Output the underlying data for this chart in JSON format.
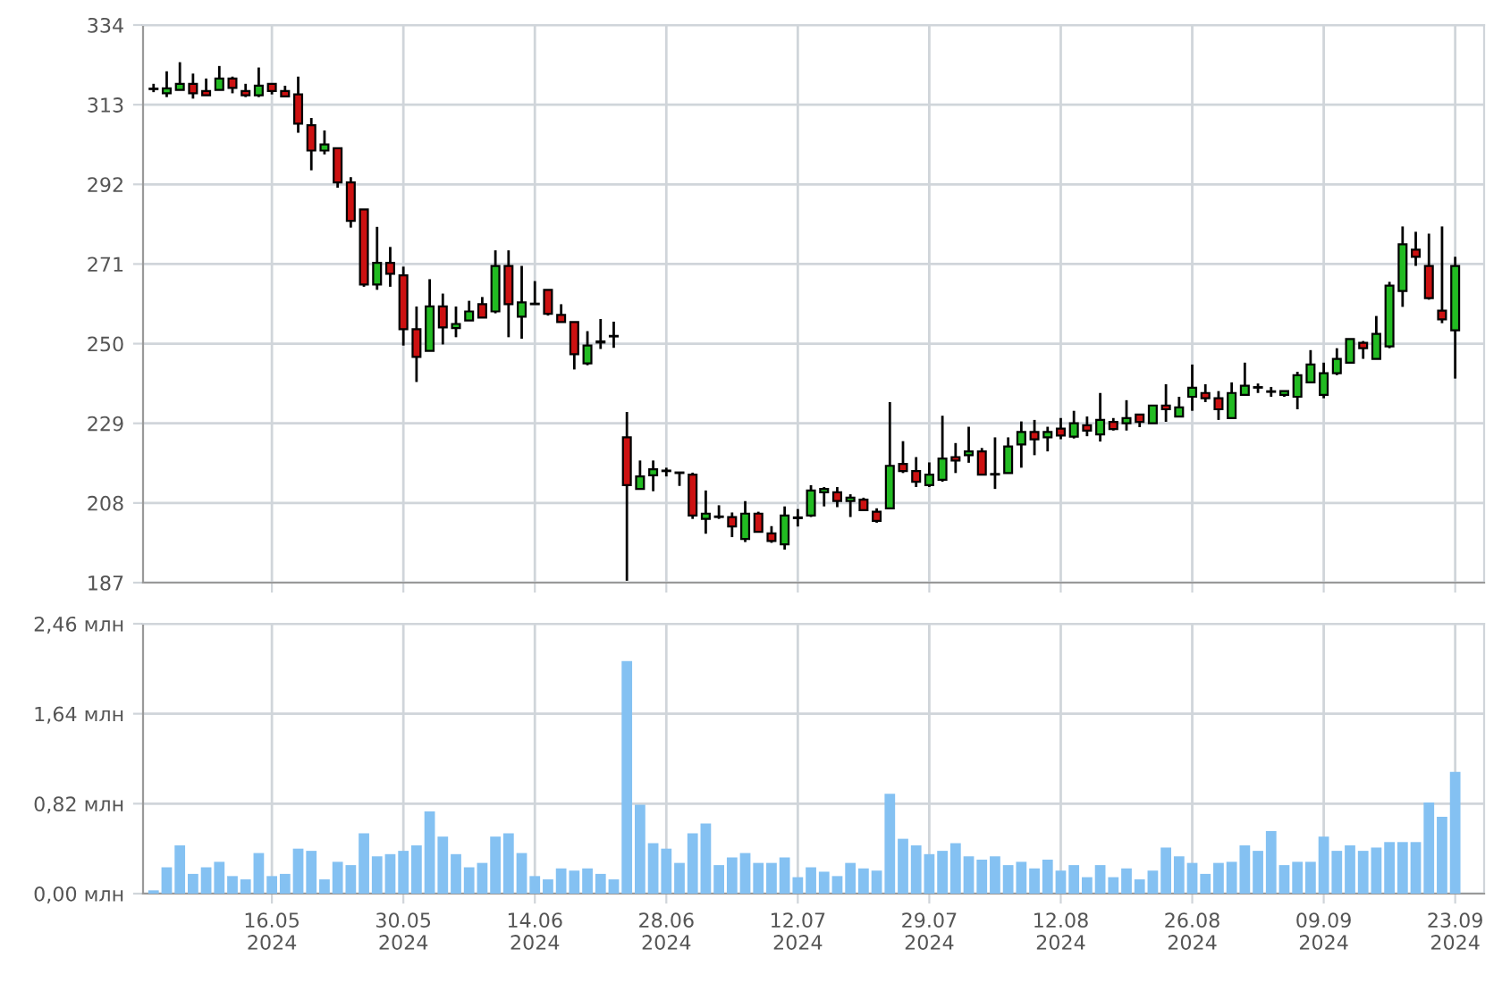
{
  "chart_data": [
    {
      "type": "candlestick",
      "categories": [
        null,
        null,
        null,
        null,
        null,
        null,
        null,
        null,
        null,
        null,
        null,
        null,
        null,
        null,
        null,
        null,
        null,
        null,
        null,
        null,
        null,
        null,
        null,
        null,
        null,
        null,
        null,
        null,
        null,
        null,
        null,
        null,
        null,
        null,
        null,
        null,
        null,
        null,
        null,
        null,
        null,
        null,
        null,
        null,
        null,
        null,
        null,
        null,
        null,
        null,
        null,
        null,
        null,
        null,
        null,
        null,
        null,
        null,
        null,
        null,
        null,
        null,
        null,
        null,
        null,
        null,
        null,
        null,
        null,
        null,
        null,
        null,
        null,
        null,
        null,
        null,
        null,
        null,
        null,
        null,
        null,
        null,
        null,
        null,
        null,
        null,
        null,
        null,
        null,
        null,
        null,
        null,
        null,
        null,
        null,
        null,
        null,
        null,
        null,
        null
      ],
      "ohlc": [
        [
          317.1,
          318.5,
          316.3,
          317.1
        ],
        [
          316.0,
          321.8,
          315.0,
          317.3
        ],
        [
          316.9,
          324.2,
          316.9,
          318.5
        ],
        [
          318.5,
          321.2,
          314.6,
          316.0
        ],
        [
          316.6,
          319.9,
          315.5,
          315.5
        ],
        [
          316.9,
          323.2,
          316.9,
          319.9
        ],
        [
          319.9,
          320.4,
          316.0,
          317.4
        ],
        [
          316.6,
          318.5,
          315.0,
          315.5
        ],
        [
          315.5,
          322.8,
          315.0,
          318.0
        ],
        [
          318.5,
          318.5,
          315.7,
          316.6
        ],
        [
          316.6,
          318.0,
          315.2,
          315.2
        ],
        [
          315.7,
          320.4,
          305.6,
          308.0
        ],
        [
          307.6,
          309.5,
          295.7,
          300.9
        ],
        [
          300.9,
          306.2,
          299.9,
          302.5
        ],
        [
          301.5,
          301.5,
          291.1,
          292.5
        ],
        [
          292.5,
          293.9,
          280.6,
          282.4
        ],
        [
          285.4,
          285.4,
          265.0,
          265.6
        ],
        [
          265.6,
          280.8,
          264.2,
          271.3
        ],
        [
          271.3,
          275.5,
          265.0,
          268.4
        ],
        [
          268.0,
          270.3,
          249.5,
          253.8
        ],
        [
          253.8,
          259.8,
          239.9,
          246.5
        ],
        [
          248.1,
          267.0,
          248.1,
          259.8
        ],
        [
          259.8,
          263.2,
          249.8,
          254.3
        ],
        [
          254.1,
          259.8,
          251.7,
          255.2
        ],
        [
          256.1,
          261.3,
          256.1,
          258.5
        ],
        [
          260.4,
          262.3,
          256.9,
          256.9
        ],
        [
          258.5,
          274.6,
          258.0,
          270.5
        ],
        [
          270.5,
          274.6,
          251.7,
          260.4
        ],
        [
          257.1,
          270.5,
          251.3,
          260.9
        ],
        [
          260.4,
          266.5,
          260.4,
          260.4
        ],
        [
          264.2,
          264.2,
          257.4,
          257.9
        ],
        [
          257.6,
          260.4,
          255.7,
          255.7
        ],
        [
          255.7,
          255.7,
          243.2,
          247.2
        ],
        [
          244.8,
          253.3,
          244.3,
          249.5
        ],
        [
          250.3,
          256.5,
          248.6,
          250.6
        ],
        [
          251.9,
          255.8,
          248.9,
          251.9
        ],
        [
          225.3,
          232.0,
          187.5,
          212.7
        ],
        [
          211.7,
          219.2,
          211.7,
          215.0
        ],
        [
          215.3,
          219.2,
          211.1,
          216.9
        ],
        [
          216.4,
          217.3,
          215.0,
          216.4
        ],
        [
          216.0,
          216.1,
          212.5,
          215.9
        ],
        [
          215.5,
          216.0,
          203.8,
          204.7
        ],
        [
          203.8,
          211.3,
          199.9,
          205.2
        ],
        [
          204.3,
          207.4,
          203.8,
          204.3
        ],
        [
          204.3,
          205.5,
          199.0,
          201.8
        ],
        [
          198.5,
          208.5,
          197.7,
          205.2
        ],
        [
          205.2,
          205.7,
          200.4,
          200.4
        ],
        [
          200.0,
          201.9,
          197.5,
          198.0
        ],
        [
          197.1,
          207.1,
          195.7,
          204.7
        ],
        [
          204.0,
          206.4,
          201.8,
          204.2
        ],
        [
          204.7,
          212.7,
          204.3,
          211.3
        ],
        [
          210.8,
          212.2,
          207.1,
          211.7
        ],
        [
          210.8,
          212.2,
          206.9,
          208.5
        ],
        [
          208.5,
          210.3,
          204.3,
          209.4
        ],
        [
          208.9,
          209.4,
          206.1,
          206.1
        ],
        [
          205.7,
          206.6,
          202.8,
          203.3
        ],
        [
          206.6,
          234.6,
          206.6,
          217.8
        ],
        [
          218.3,
          224.3,
          215.9,
          216.4
        ],
        [
          216.4,
          220.1,
          212.2,
          213.6
        ],
        [
          212.7,
          218.7,
          212.2,
          215.5
        ],
        [
          214.1,
          231.0,
          213.6,
          219.7
        ],
        [
          220.1,
          223.8,
          215.9,
          219.2
        ],
        [
          220.6,
          228.1,
          218.6,
          221.6
        ],
        [
          221.6,
          222.5,
          215.5,
          215.5
        ],
        [
          215.5,
          225.3,
          211.7,
          215.5
        ],
        [
          215.9,
          225.3,
          215.9,
          222.9
        ],
        [
          223.4,
          229.5,
          217.3,
          226.7
        ],
        [
          226.7,
          229.9,
          220.6,
          224.8
        ],
        [
          225.3,
          228.1,
          221.6,
          226.7
        ],
        [
          227.6,
          230.4,
          224.8,
          225.8
        ],
        [
          225.5,
          232.3,
          225.0,
          229.0
        ],
        [
          228.5,
          230.8,
          225.6,
          227.1
        ],
        [
          226.1,
          237.0,
          224.2,
          229.9
        ],
        [
          229.4,
          230.4,
          227.1,
          227.5
        ],
        [
          229.0,
          235.1,
          227.1,
          230.4
        ],
        [
          231.3,
          231.3,
          228.0,
          229.4
        ],
        [
          229.0,
          233.7,
          229.0,
          233.7
        ],
        [
          233.7,
          239.3,
          229.4,
          232.7
        ],
        [
          230.8,
          236.0,
          230.8,
          233.2
        ],
        [
          236.0,
          244.5,
          232.3,
          238.4
        ],
        [
          237.0,
          239.3,
          234.6,
          235.6
        ],
        [
          235.6,
          237.5,
          229.9,
          232.7
        ],
        [
          230.4,
          239.8,
          230.4,
          237.0
        ],
        [
          236.5,
          245.0,
          236.5,
          238.9
        ],
        [
          238.4,
          239.5,
          237.0,
          238.4
        ],
        [
          237.3,
          238.6,
          236.0,
          237.3
        ],
        [
          236.5,
          237.5,
          236.0,
          237.5
        ],
        [
          236.0,
          242.6,
          232.7,
          241.7
        ],
        [
          239.8,
          248.3,
          239.8,
          244.5
        ],
        [
          236.5,
          245.0,
          235.6,
          242.2
        ],
        [
          242.2,
          248.8,
          241.7,
          246.0
        ],
        [
          245.0,
          251.2,
          245.0,
          251.2
        ],
        [
          250.2,
          250.7,
          246.0,
          248.8
        ],
        [
          246.0,
          257.3,
          246.0,
          252.6
        ],
        [
          249.3,
          266.3,
          248.8,
          265.3
        ],
        [
          263.9,
          280.9,
          259.7,
          276.2
        ],
        [
          274.8,
          279.5,
          270.5,
          272.9
        ],
        [
          270.5,
          279.0,
          261.6,
          262.0
        ],
        [
          258.7,
          280.9,
          255.4,
          256.4
        ],
        [
          253.5,
          272.9,
          240.8,
          270.5
        ]
      ],
      "ylim": [
        187,
        334
      ],
      "yticks": [
        187,
        208,
        229,
        250,
        271,
        292,
        313,
        334
      ],
      "grid": true,
      "tick_labels": "y"
    },
    {
      "type": "bar",
      "categories": [
        null,
        null,
        null,
        null,
        null,
        null,
        null,
        null,
        null,
        "16.05\n2024",
        null,
        null,
        null,
        null,
        null,
        null,
        null,
        null,
        null,
        "30.05\n2024",
        null,
        null,
        null,
        null,
        null,
        null,
        null,
        null,
        null,
        "14.06\n2024",
        null,
        null,
        null,
        null,
        null,
        null,
        null,
        null,
        null,
        "28.06\n2024",
        null,
        null,
        null,
        null,
        null,
        null,
        null,
        null,
        null,
        "12.07\n2024",
        null,
        null,
        null,
        null,
        null,
        null,
        null,
        null,
        null,
        "29.07\n2024",
        null,
        null,
        null,
        null,
        null,
        null,
        null,
        null,
        null,
        "12.08\n2024",
        null,
        null,
        null,
        null,
        null,
        null,
        null,
        null,
        null,
        "26.08\n2024",
        null,
        null,
        null,
        null,
        null,
        null,
        null,
        null,
        null,
        "09.09\n2024",
        null,
        null,
        null,
        null,
        null,
        null,
        null,
        null,
        null,
        "23.09\n2024"
      ],
      "values": [
        0.03,
        0.24,
        0.44,
        0.18,
        0.24,
        0.29,
        0.16,
        0.13,
        0.37,
        0.16,
        0.18,
        0.41,
        0.39,
        0.13,
        0.29,
        0.26,
        0.55,
        0.34,
        0.36,
        0.39,
        0.44,
        0.75,
        0.52,
        0.36,
        0.24,
        0.28,
        0.52,
        0.55,
        0.37,
        0.16,
        0.13,
        0.23,
        0.21,
        0.23,
        0.18,
        0.13,
        2.12,
        0.81,
        0.46,
        0.41,
        0.28,
        0.55,
        0.64,
        0.26,
        0.33,
        0.37,
        0.28,
        0.28,
        0.33,
        0.15,
        0.24,
        0.2,
        0.16,
        0.28,
        0.23,
        0.21,
        0.91,
        0.5,
        0.44,
        0.36,
        0.39,
        0.46,
        0.34,
        0.31,
        0.34,
        0.26,
        0.29,
        0.23,
        0.31,
        0.21,
        0.26,
        0.15,
        0.26,
        0.15,
        0.23,
        0.13,
        0.21,
        0.42,
        0.34,
        0.28,
        0.18,
        0.28,
        0.29,
        0.44,
        0.39,
        0.57,
        0.26,
        0.29,
        0.29,
        0.52,
        0.39,
        0.44,
        0.39,
        0.42,
        0.47,
        0.47,
        0.47,
        0.83,
        0.7,
        1.11
      ],
      "color": "#84c1f2",
      "ylim": [
        0,
        2.46
      ],
      "yticks": [
        {
          "value": 0,
          "label": "0,00 млн"
        },
        {
          "value": 0.82,
          "label": "0,82 млн"
        },
        {
          "value": 1.64,
          "label": "1,64 млн"
        },
        {
          "value": 2.46,
          "label": "2,46 млн"
        }
      ],
      "grid": true
    }
  ]
}
